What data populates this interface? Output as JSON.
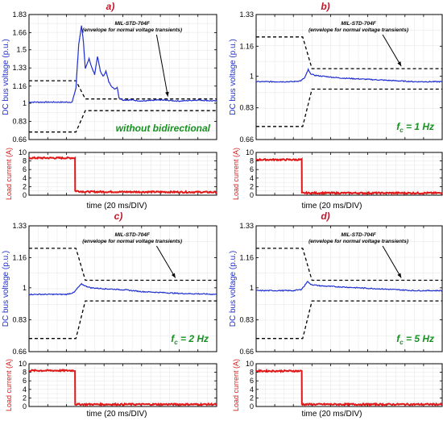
{
  "colors": {
    "voltage": "#1f2fd0",
    "current": "#e01818",
    "envelope": "#000000",
    "panel_title": "#c0182a",
    "annotation_green": "#17911f",
    "grid": "#c8c8c8"
  },
  "chart_data": [
    {
      "type": "line",
      "panel_label": "a)",
      "voltage": {
        "ylabel": "DC bus voltage (p.u.)",
        "yticks": [
          "0.66",
          "0.83",
          "1",
          "1.16",
          "1.33",
          "1.5",
          "1.66",
          "1.83"
        ],
        "ylim": [
          0.66,
          1.83
        ],
        "xlim": [
          0,
          100
        ],
        "grid": true,
        "envelope_label_1": "MIL-STD-704F",
        "envelope_label_2": "(envelope for normal voltage transients)",
        "annotation": "without bidirectional",
        "envelope_upper": [
          [
            0,
            1.21
          ],
          [
            25,
            1.21
          ],
          [
            30,
            1.04
          ],
          [
            100,
            1.04
          ]
        ],
        "envelope_lower": [
          [
            0,
            0.73
          ],
          [
            25,
            0.73
          ],
          [
            30,
            0.93
          ],
          [
            100,
            0.93
          ]
        ],
        "series": [
          {
            "x": [
              0,
              23,
              25,
              26.5,
              28,
              29,
              30,
              32,
              33.5,
              35,
              36.5,
              38,
              39.5,
              41,
              42.5,
              44,
              45.5,
              47,
              48,
              50,
              55,
              60,
              70,
              80,
              90,
              100
            ],
            "y": [
              1.01,
              1.01,
              1.14,
              1.55,
              1.73,
              1.57,
              1.32,
              1.42,
              1.33,
              1.27,
              1.44,
              1.3,
              1.25,
              1.3,
              1.2,
              1.16,
              1.13,
              1.15,
              1.05,
              1.03,
              1.03,
              1.02,
              1.03,
              1.02,
              1.03,
              1.02
            ]
          }
        ]
      },
      "current": {
        "ylabel": "Load current (A)",
        "yticks": [
          "0",
          "2",
          "4",
          "6",
          "8",
          "10"
        ],
        "ylim": [
          0,
          10
        ],
        "xlabel": "time (20 ms/DIV)",
        "series": [
          {
            "x": [
              0,
              24.5,
              24.6,
              30,
              100
            ],
            "y": [
              8.7,
              8.7,
              1.0,
              0.8,
              0.7
            ]
          }
        ]
      }
    },
    {
      "type": "line",
      "panel_label": "b)",
      "voltage": {
        "ylabel": "DC bus voltage (p.u.)",
        "yticks": [
          "0.66",
          "0.83",
          "1",
          "1.16",
          "1.33"
        ],
        "ylim": [
          0.66,
          1.33
        ],
        "xlim": [
          0,
          100
        ],
        "grid": true,
        "envelope_label_1": "MIL-STD-704F",
        "envelope_label_2": "(envelope for normal voltage transients)",
        "annotation": "f",
        "annotation_sub": "c",
        "annotation_suffix": " = 1 Hz",
        "envelope_upper": [
          [
            0,
            1.21
          ],
          [
            25,
            1.21
          ],
          [
            30,
            1.04
          ],
          [
            100,
            1.04
          ]
        ],
        "envelope_lower": [
          [
            0,
            0.73
          ],
          [
            25,
            0.73
          ],
          [
            30,
            0.93
          ],
          [
            100,
            0.93
          ]
        ],
        "series": [
          {
            "x": [
              0,
              20,
              24,
              26,
              27,
              28,
              29,
              31,
              35,
              45,
              55,
              65,
              75,
              85,
              100
            ],
            "y": [
              0.97,
              0.97,
              0.975,
              0.99,
              1.01,
              1.035,
              1.015,
              1.005,
              1.0,
              0.99,
              0.985,
              0.98,
              0.975,
              0.97,
              0.97
            ]
          }
        ]
      },
      "current": {
        "ylabel": "Load current (A)",
        "yticks": [
          "0",
          "2",
          "4",
          "6",
          "8",
          "10"
        ],
        "ylim": [
          0,
          10
        ],
        "xlabel": "time (20 ms/DIV)",
        "series": [
          {
            "x": [
              0,
              24.5,
              24.6,
              100
            ],
            "y": [
              8.3,
              8.3,
              0.5,
              0.5
            ]
          }
        ]
      }
    },
    {
      "type": "line",
      "panel_label": "c)",
      "voltage": {
        "ylabel": "DC bus voltage (p.u.)",
        "yticks": [
          "0.66",
          "0.83",
          "1",
          "1.16",
          "1.33"
        ],
        "ylim": [
          0.66,
          1.33
        ],
        "xlim": [
          0,
          100
        ],
        "grid": true,
        "envelope_label_1": "MIL-STD-704F",
        "envelope_label_2": "(envelope for normal voltage transients)",
        "annotation": "f",
        "annotation_sub": "c",
        "annotation_suffix": " = 2 Hz",
        "envelope_upper": [
          [
            0,
            1.21
          ],
          [
            25,
            1.21
          ],
          [
            30,
            1.04
          ],
          [
            100,
            1.04
          ]
        ],
        "envelope_lower": [
          [
            0,
            0.73
          ],
          [
            25,
            0.73
          ],
          [
            30,
            0.93
          ],
          [
            100,
            0.93
          ]
        ],
        "series": [
          {
            "x": [
              0,
              20,
              24,
              26,
              28,
              30,
              33,
              40,
              50,
              60,
              70,
              80,
              90,
              100
            ],
            "y": [
              0.965,
              0.965,
              0.975,
              1.0,
              1.02,
              1.01,
              1.0,
              0.995,
              0.99,
              0.98,
              0.975,
              0.97,
              0.968,
              0.965
            ]
          }
        ]
      },
      "current": {
        "ylabel": "Load current (A)",
        "yticks": [
          "0",
          "2",
          "4",
          "6",
          "8",
          "10"
        ],
        "ylim": [
          0,
          10
        ],
        "xlabel": "time (20 ms/DIV)",
        "series": [
          {
            "x": [
              0,
              24.5,
              24.6,
              100
            ],
            "y": [
              8.4,
              8.4,
              0.5,
              0.5
            ]
          }
        ]
      }
    },
    {
      "type": "line",
      "panel_label": "d)",
      "voltage": {
        "ylabel": "DC bus voltage (p.u.)",
        "yticks": [
          "0.66",
          "0.83",
          "1",
          "1.16",
          "1.33"
        ],
        "ylim": [
          0.66,
          1.33
        ],
        "xlim": [
          0,
          100
        ],
        "grid": true,
        "envelope_label_1": "MIL-STD-704F",
        "envelope_label_2": "(envelope for normal voltage transients)",
        "annotation": "f",
        "annotation_sub": "c",
        "annotation_suffix": " = 5 Hz",
        "envelope_upper": [
          [
            0,
            1.21
          ],
          [
            25,
            1.21
          ],
          [
            30,
            1.04
          ],
          [
            100,
            1.04
          ]
        ],
        "envelope_lower": [
          [
            0,
            0.73
          ],
          [
            25,
            0.73
          ],
          [
            30,
            0.93
          ],
          [
            100,
            0.93
          ]
        ],
        "series": [
          {
            "x": [
              0,
              20,
              24,
              26,
              27.5,
              29,
              31,
              35,
              45,
              55,
              65,
              75,
              85,
              100
            ],
            "y": [
              0.985,
              0.985,
              0.99,
              1.01,
              1.035,
              1.02,
              1.015,
              1.01,
              1.005,
              1.0,
              0.995,
              0.99,
              0.985,
              0.985
            ]
          }
        ]
      },
      "current": {
        "ylabel": "Load current (A)",
        "yticks": [
          "0",
          "2",
          "4",
          "6",
          "8",
          "10"
        ],
        "ylim": [
          0,
          10
        ],
        "xlabel": "time (20 ms/DIV)",
        "series": [
          {
            "x": [
              0,
              24.5,
              24.6,
              100
            ],
            "y": [
              8.3,
              8.3,
              0.5,
              0.5
            ]
          }
        ]
      }
    }
  ]
}
